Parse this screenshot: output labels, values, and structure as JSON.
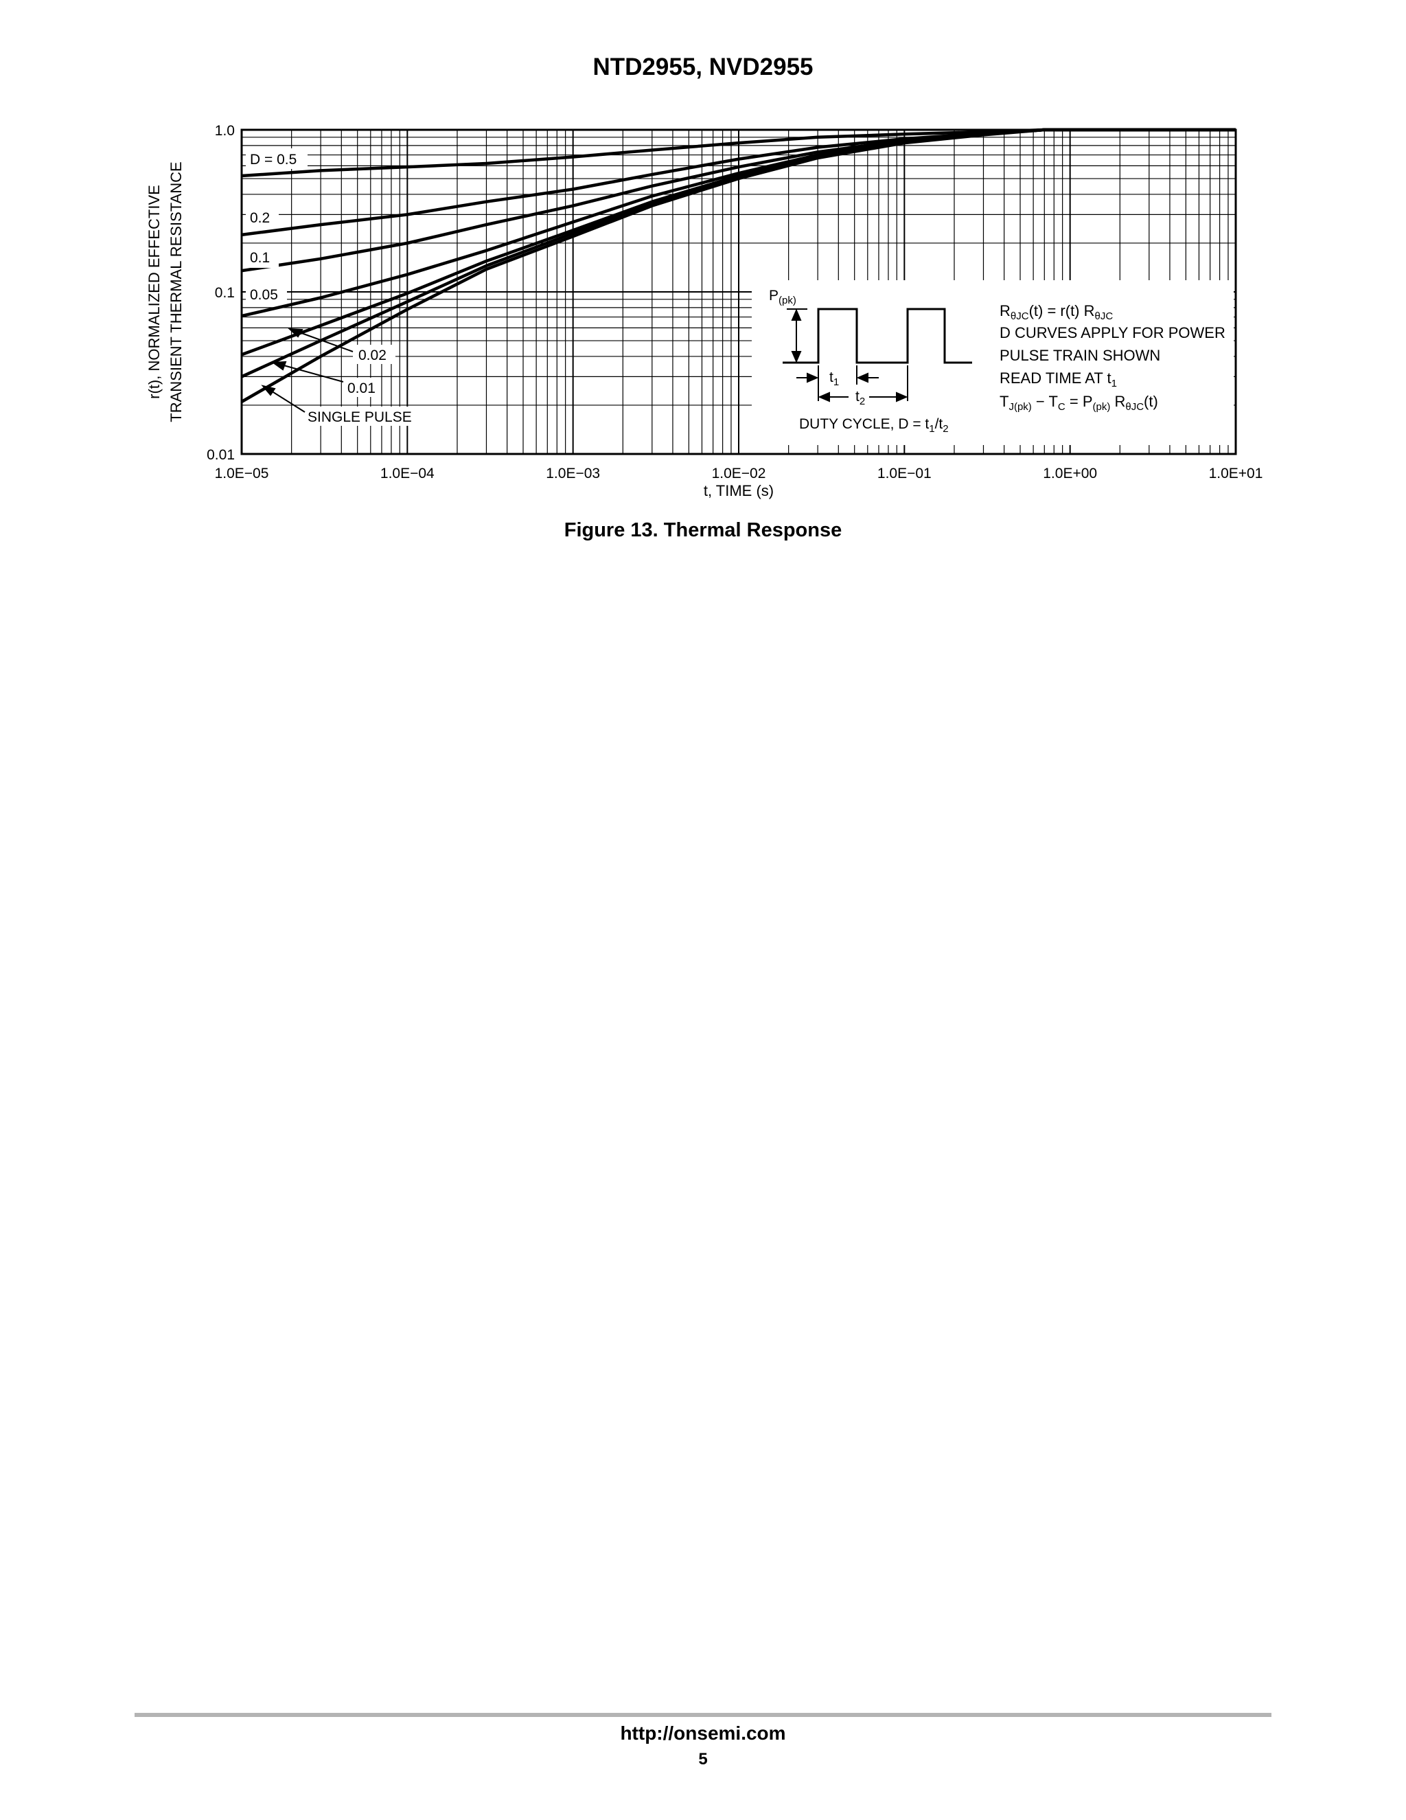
{
  "header": {
    "title": "NTD2955, NVD2955"
  },
  "figure": {
    "caption": "Figure 13. Thermal Response"
  },
  "footer": {
    "url": "http://onsemi.com",
    "page": "5"
  },
  "chart_data": {
    "type": "line",
    "x_scale": "log",
    "y_scale": "log",
    "xlim": [
      1e-05,
      10
    ],
    "ylim": [
      0.01,
      1.0
    ],
    "grid": true,
    "xlabel": "t, TIME (s)",
    "ylabel_lines": [
      "r(t), NORMALIZED EFFECTIVE",
      "TRANSIENT THERMAL RESISTANCE"
    ],
    "x_tick_labels": [
      "1.0E−05",
      "1.0E−04",
      "1.0E−03",
      "1.0E−02",
      "1.0E−01",
      "1.0E+00",
      "1.0E+01"
    ],
    "x_ticks": [
      1e-05,
      0.0001,
      0.001,
      0.01,
      0.1,
      1,
      10
    ],
    "y_tick_labels": [
      "1.0",
      "0.1",
      "0.01"
    ],
    "y_ticks": [
      1.0,
      0.1,
      0.01
    ],
    "series": [
      {
        "name": "D = 0.5",
        "points": [
          [
            1e-05,
            0.52
          ],
          [
            3e-05,
            0.56
          ],
          [
            0.0001,
            0.59
          ],
          [
            0.0003,
            0.62
          ],
          [
            0.001,
            0.68
          ],
          [
            0.003,
            0.75
          ],
          [
            0.01,
            0.83
          ],
          [
            0.03,
            0.9
          ],
          [
            0.1,
            0.94
          ],
          [
            0.3,
            0.97
          ],
          [
            0.7,
            1.0
          ],
          [
            10,
            1.0
          ]
        ]
      },
      {
        "name": "0.2",
        "points": [
          [
            1e-05,
            0.225
          ],
          [
            3e-05,
            0.26
          ],
          [
            0.0001,
            0.3
          ],
          [
            0.0003,
            0.36
          ],
          [
            0.001,
            0.43
          ],
          [
            0.003,
            0.53
          ],
          [
            0.01,
            0.66
          ],
          [
            0.03,
            0.78
          ],
          [
            0.1,
            0.88
          ],
          [
            0.3,
            0.95
          ],
          [
            0.7,
            1.0
          ],
          [
            10,
            1.0
          ]
        ]
      },
      {
        "name": "0.1",
        "points": [
          [
            1e-05,
            0.135
          ],
          [
            3e-05,
            0.16
          ],
          [
            0.0001,
            0.2
          ],
          [
            0.0003,
            0.26
          ],
          [
            0.001,
            0.34
          ],
          [
            0.003,
            0.45
          ],
          [
            0.01,
            0.59
          ],
          [
            0.03,
            0.73
          ],
          [
            0.1,
            0.86
          ],
          [
            0.3,
            0.94
          ],
          [
            0.7,
            1.0
          ],
          [
            10,
            1.0
          ]
        ]
      },
      {
        "name": "0.05",
        "points": [
          [
            1e-05,
            0.071
          ],
          [
            3e-05,
            0.092
          ],
          [
            0.0001,
            0.128
          ],
          [
            0.0003,
            0.18
          ],
          [
            0.001,
            0.27
          ],
          [
            0.003,
            0.39
          ],
          [
            0.01,
            0.54
          ],
          [
            0.03,
            0.7
          ],
          [
            0.1,
            0.85
          ],
          [
            0.3,
            0.94
          ],
          [
            0.7,
            1.0
          ],
          [
            10,
            1.0
          ]
        ]
      },
      {
        "name": "0.02",
        "points": [
          [
            1e-05,
            0.041
          ],
          [
            3e-05,
            0.062
          ],
          [
            0.0001,
            0.098
          ],
          [
            0.0003,
            0.155
          ],
          [
            0.001,
            0.24
          ],
          [
            0.003,
            0.36
          ],
          [
            0.01,
            0.52
          ],
          [
            0.03,
            0.69
          ],
          [
            0.1,
            0.84
          ],
          [
            0.3,
            0.94
          ],
          [
            0.7,
            1.0
          ],
          [
            10,
            1.0
          ]
        ]
      },
      {
        "name": "0.01",
        "points": [
          [
            1e-05,
            0.03
          ],
          [
            3e-05,
            0.05
          ],
          [
            0.0001,
            0.087
          ],
          [
            0.0003,
            0.145
          ],
          [
            0.001,
            0.23
          ],
          [
            0.003,
            0.35
          ],
          [
            0.01,
            0.51
          ],
          [
            0.03,
            0.68
          ],
          [
            0.1,
            0.84
          ],
          [
            0.3,
            0.94
          ],
          [
            0.7,
            1.0
          ],
          [
            10,
            1.0
          ]
        ]
      },
      {
        "name": "SINGLE PULSE",
        "points": [
          [
            1e-05,
            0.021
          ],
          [
            3e-05,
            0.04
          ],
          [
            0.0001,
            0.078
          ],
          [
            0.0003,
            0.138
          ],
          [
            0.001,
            0.22
          ],
          [
            0.003,
            0.34
          ],
          [
            0.01,
            0.5
          ],
          [
            0.03,
            0.67
          ],
          [
            0.1,
            0.83
          ],
          [
            0.3,
            0.93
          ],
          [
            0.7,
            1.0
          ],
          [
            10,
            1.0
          ]
        ]
      }
    ],
    "inset": {
      "p_label": "P",
      "p_sub": "(pk)",
      "t1_label": "t",
      "t1_sub": "1",
      "t2_label": "t",
      "t2_sub": "2",
      "duty_text": "DUTY CYCLE, D = t",
      "duty_sub1": "1",
      "duty_slash": "/t",
      "duty_sub2": "2"
    },
    "notes": {
      "line1_a": "R",
      "line1_sub1": "θJC",
      "line1_b": "(t) = r(t) R",
      "line1_sub2": "θJC",
      "line2": "D CURVES APPLY FOR POWER",
      "line3": "PULSE TRAIN SHOWN",
      "line4_a": "READ TIME AT t",
      "line4_sub": "1",
      "line5_a": "T",
      "line5_sub1": "J(pk)",
      "line5_b": " − T",
      "line5_sub2": "C",
      "line5_c": " = P",
      "line5_sub3": "(pk)",
      "line5_d": " R",
      "line5_sub4": "θJC",
      "line5_e": "(t)"
    }
  }
}
